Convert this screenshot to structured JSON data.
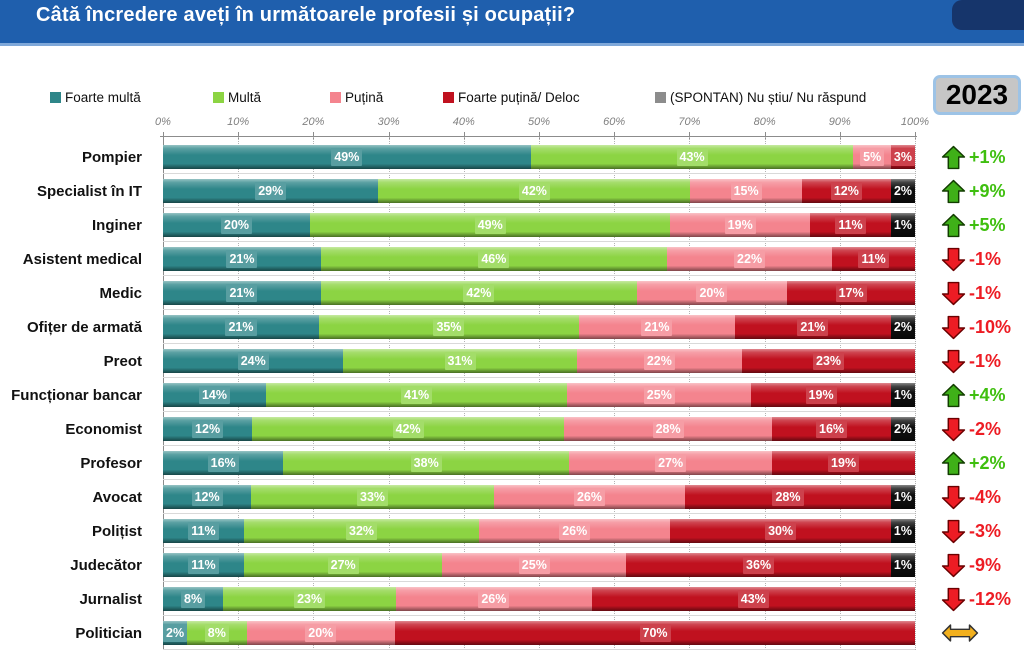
{
  "title": "Câtă încredere aveți în următoarele profesii și ocupații?",
  "year_badge": "2023",
  "theme": {
    "header_bg": "#1F5FAD",
    "header_text": "#FFFFFF",
    "corner": "#16356B",
    "badge_bg": "#C6C6C6",
    "badge_border": "#9DC3E6",
    "grid": "#B3B3B3",
    "axis": "#8C8C8C",
    "axis_label": "#808080",
    "row_sep": "#D9D9D9",
    "up": "#3FB018",
    "up_stroke": "#123D00",
    "up_text": "#3FBF0F",
    "down": "#ED1C24",
    "down_stroke": "#6B0000",
    "down_text": "#ED1C24",
    "neutral": "#F2B01E",
    "neutral_stroke": "#333333"
  },
  "legend": [
    {
      "label": "Foarte multă",
      "color": "#2E8689"
    },
    {
      "label": "Multă",
      "color": "#8CD443"
    },
    {
      "label": "Puțină",
      "color": "#F4848E"
    },
    {
      "label": "Foarte puțină/ Deloc",
      "color": "#C0111F"
    },
    {
      "label": "(SPONTAN) Nu știu/ Nu răspund",
      "color": "#8C8C8C"
    }
  ],
  "axis": {
    "ticks": [
      "0%",
      "10%",
      "20%",
      "30%",
      "40%",
      "50%",
      "60%",
      "70%",
      "80%",
      "90%",
      "100%"
    ]
  },
  "chart_data": {
    "type": "bar",
    "stacked": true,
    "orientation": "horizontal",
    "title": "Câtă încredere aveți în următoarele profesii și ocupații?",
    "xlim": [
      0,
      100
    ],
    "categories": [
      "Pompier",
      "Specialist în IT",
      "Inginer",
      "Asistent medical",
      "Medic",
      "Ofițer de armată",
      "Preot",
      "Funcționar bancar",
      "Economist",
      "Profesor",
      "Avocat",
      "Polițist",
      "Judecător",
      "Jurnalist",
      "Politician"
    ],
    "series": [
      {
        "name": "Foarte multă",
        "color": "#2E8689",
        "values": [
          49,
          29,
          20,
          21,
          21,
          21,
          24,
          14,
          12,
          16,
          12,
          11,
          11,
          8,
          2
        ]
      },
      {
        "name": "Multă",
        "color": "#8CD443",
        "values": [
          43,
          42,
          49,
          46,
          42,
          35,
          31,
          41,
          42,
          38,
          33,
          32,
          27,
          23,
          8
        ]
      },
      {
        "name": "Puțină",
        "color": "#F4848E",
        "values": [
          5,
          15,
          19,
          22,
          20,
          21,
          22,
          25,
          28,
          27,
          26,
          26,
          25,
          26,
          20
        ]
      },
      {
        "name": "Foarte puțină/ Deloc",
        "color": "#C0111F",
        "values": [
          3,
          12,
          11,
          11,
          17,
          21,
          23,
          19,
          16,
          19,
          28,
          30,
          36,
          43,
          70
        ]
      },
      {
        "name": "(SPONTAN) Nu știu/ Nu răspund",
        "color": "#0D0D0D",
        "values": [
          0,
          2,
          1,
          0,
          0,
          2,
          0,
          1,
          2,
          0,
          1,
          1,
          1,
          0,
          0
        ]
      }
    ],
    "changes": [
      {
        "value": "+1%",
        "direction": "up"
      },
      {
        "value": "+9%",
        "direction": "up"
      },
      {
        "value": "+5%",
        "direction": "up"
      },
      {
        "value": "-1%",
        "direction": "down"
      },
      {
        "value": "-1%",
        "direction": "down"
      },
      {
        "value": "-10%",
        "direction": "down"
      },
      {
        "value": "-1%",
        "direction": "down"
      },
      {
        "value": "+4%",
        "direction": "up"
      },
      {
        "value": "-2%",
        "direction": "down"
      },
      {
        "value": "+2%",
        "direction": "up"
      },
      {
        "value": "-4%",
        "direction": "down"
      },
      {
        "value": "-3%",
        "direction": "down"
      },
      {
        "value": "-9%",
        "direction": "down"
      },
      {
        "value": "-12%",
        "direction": "down"
      },
      {
        "value": "",
        "direction": "neutral"
      }
    ]
  }
}
